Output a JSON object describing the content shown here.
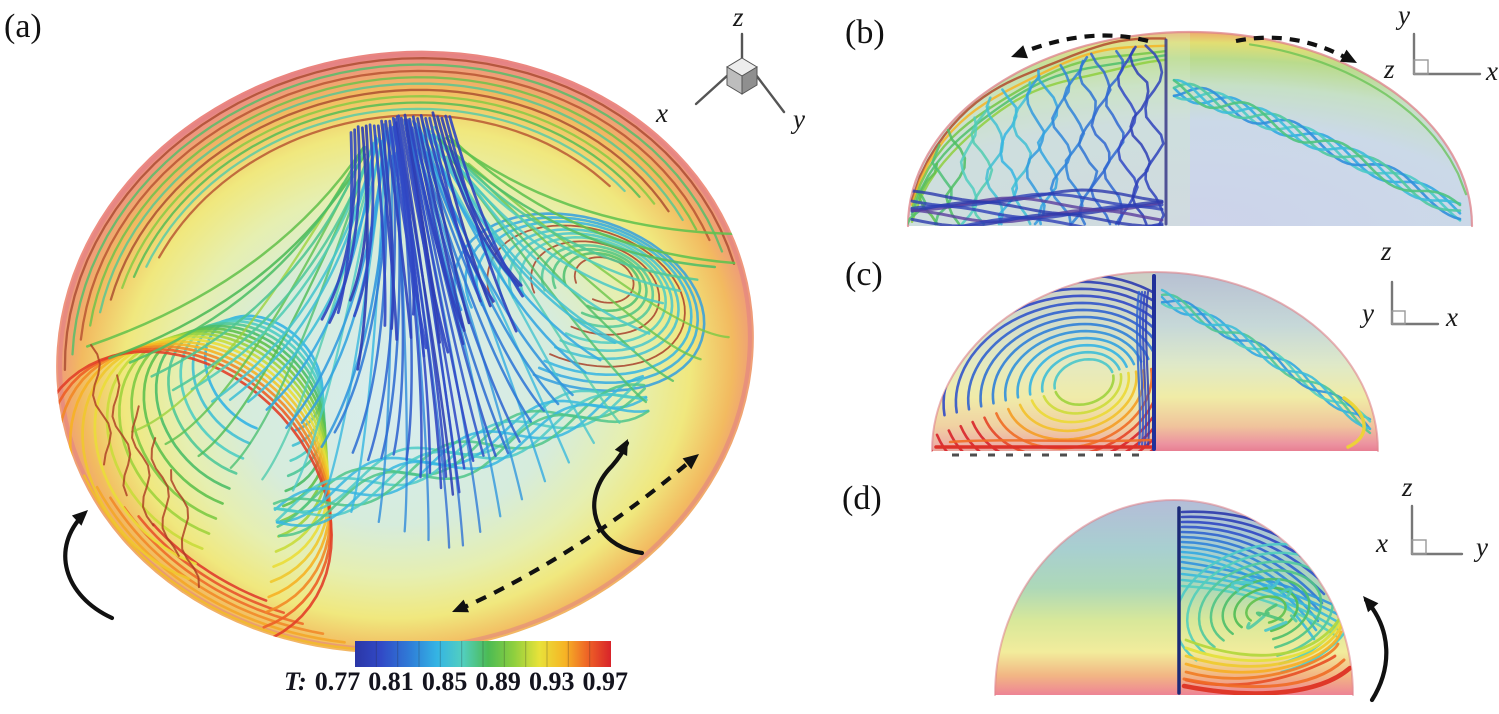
{
  "panels": {
    "a": {
      "label": "(a)",
      "axis_up": "z",
      "axis_left": "x",
      "axis_right": "y"
    },
    "b": {
      "label": "(b)",
      "axis_up": "y",
      "axis_corner": "z",
      "axis_right": "x"
    },
    "c": {
      "label": "(c)",
      "axis_up": "z",
      "axis_corner": "y",
      "axis_right": "x"
    },
    "d": {
      "label": "(d)",
      "axis_up": "z",
      "axis_corner": "x",
      "axis_right": "y"
    }
  },
  "colorbar": {
    "title": "T:",
    "ticks": [
      "0.77",
      "0.81",
      "0.85",
      "0.89",
      "0.93",
      "0.97"
    ]
  },
  "palette": [
    {
      "t": 0.0,
      "color": "#2b36a6"
    },
    {
      "t": 0.1,
      "color": "#3149c6"
    },
    {
      "t": 0.22,
      "color": "#2f7fd8"
    },
    {
      "t": 0.32,
      "color": "#34b4e4"
    },
    {
      "t": 0.42,
      "color": "#52cfc0"
    },
    {
      "t": 0.52,
      "color": "#4cbb54"
    },
    {
      "t": 0.62,
      "color": "#8ecf3e"
    },
    {
      "t": 0.72,
      "color": "#e8e23a"
    },
    {
      "t": 0.82,
      "color": "#f6b425"
    },
    {
      "t": 0.91,
      "color": "#ee6226"
    },
    {
      "t": 1.0,
      "color": "#d8232a"
    }
  ],
  "surfaces": {
    "a": [
      [
        "0%",
        "#d8edf0"
      ],
      [
        "42%",
        "#d6ecdc"
      ],
      [
        "60%",
        "#e6efb0"
      ],
      [
        "74%",
        "#f0e87e"
      ],
      [
        "85%",
        "#f2ba60"
      ],
      [
        "93%",
        "#ee8f83"
      ],
      [
        "100%",
        "#e06a78"
      ]
    ],
    "b": [
      [
        "0%",
        "#cdd3eb"
      ],
      [
        "52%",
        "#cbd9e8"
      ],
      [
        "70%",
        "#c6e0c6"
      ],
      [
        "83%",
        "#badb8c"
      ],
      [
        "91%",
        "#e2de72"
      ],
      [
        "96%",
        "#eeae6c"
      ],
      [
        "100%",
        "#df6f6e"
      ]
    ],
    "c": [
      [
        "0%",
        "#b7c0d2"
      ],
      [
        "30%",
        "#c6d8d8"
      ],
      [
        "52%",
        "#dfe9c8"
      ],
      [
        "70%",
        "#f0eca6"
      ],
      [
        "86%",
        "#f0c49c"
      ],
      [
        "96%",
        "#ec93a0"
      ],
      [
        "100%",
        "#e87f92"
      ]
    ],
    "d": [
      [
        "0%",
        "#b4bdd8"
      ],
      [
        "25%",
        "#a8cfd0"
      ],
      [
        "45%",
        "#add8b8"
      ],
      [
        "62%",
        "#d8e89a"
      ],
      [
        "78%",
        "#f2ec9c"
      ],
      [
        "90%",
        "#f2b684"
      ],
      [
        "100%",
        "#ee8495"
      ]
    ]
  },
  "ink": "#111111",
  "axis_line_color": "#666666"
}
